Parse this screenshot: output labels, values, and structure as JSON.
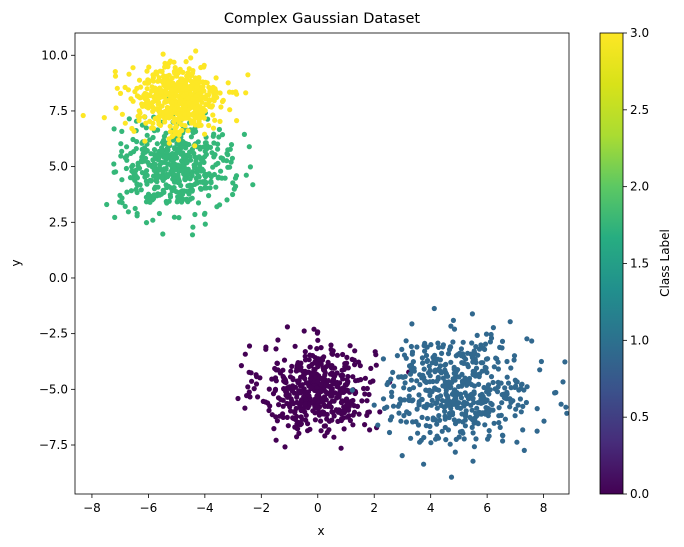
{
  "chart_data": {
    "type": "scatter",
    "title": "Complex Gaussian Dataset",
    "xlabel": "x",
    "ylabel": "y",
    "xlim": [
      -8.6,
      8.9
    ],
    "ylim": [
      -9.7,
      11.0
    ],
    "xticks": [
      -8,
      -6,
      -4,
      -2,
      0,
      2,
      4,
      6,
      8
    ],
    "xtick_labels": [
      "−8",
      "−6",
      "−4",
      "−2",
      "0",
      "2",
      "4",
      "6",
      "8"
    ],
    "yticks": [
      -7.5,
      -5.0,
      -2.5,
      0.0,
      2.5,
      5.0,
      7.5,
      10.0
    ],
    "ytick_labels": [
      "−7.5",
      "−5.0",
      "−2.5",
      "0.0",
      "2.5",
      "5.0",
      "7.5",
      "10.0"
    ],
    "grid": false,
    "colormap": "viridis",
    "colorbar": {
      "label": "Class Label",
      "range": [
        0.0,
        3.0
      ],
      "ticks": [
        0.0,
        0.5,
        1.0,
        1.5,
        2.0,
        2.5,
        3.0
      ],
      "tick_labels": [
        "0.0",
        "0.5",
        "1.0",
        "1.5",
        "2.0",
        "2.5",
        "3.0"
      ]
    },
    "series": [
      {
        "class": 0,
        "color": "#440154",
        "points_approx": 500,
        "center": [
          0.0,
          -5.0
        ],
        "std": [
          1.0,
          1.0
        ]
      },
      {
        "class": 1,
        "color": "#31688e",
        "points_approx": 500,
        "center": [
          5.0,
          -5.0
        ],
        "std": [
          1.3,
          1.2
        ]
      },
      {
        "class": 2,
        "color": "#35b779",
        "points_approx": 500,
        "center": [
          -5.0,
          5.0
        ],
        "std": [
          1.0,
          1.0
        ]
      },
      {
        "class": 3,
        "color": "#fde725",
        "points_approx": 500,
        "center": [
          -5.0,
          8.0
        ],
        "std": [
          0.8,
          0.8
        ]
      }
    ]
  }
}
